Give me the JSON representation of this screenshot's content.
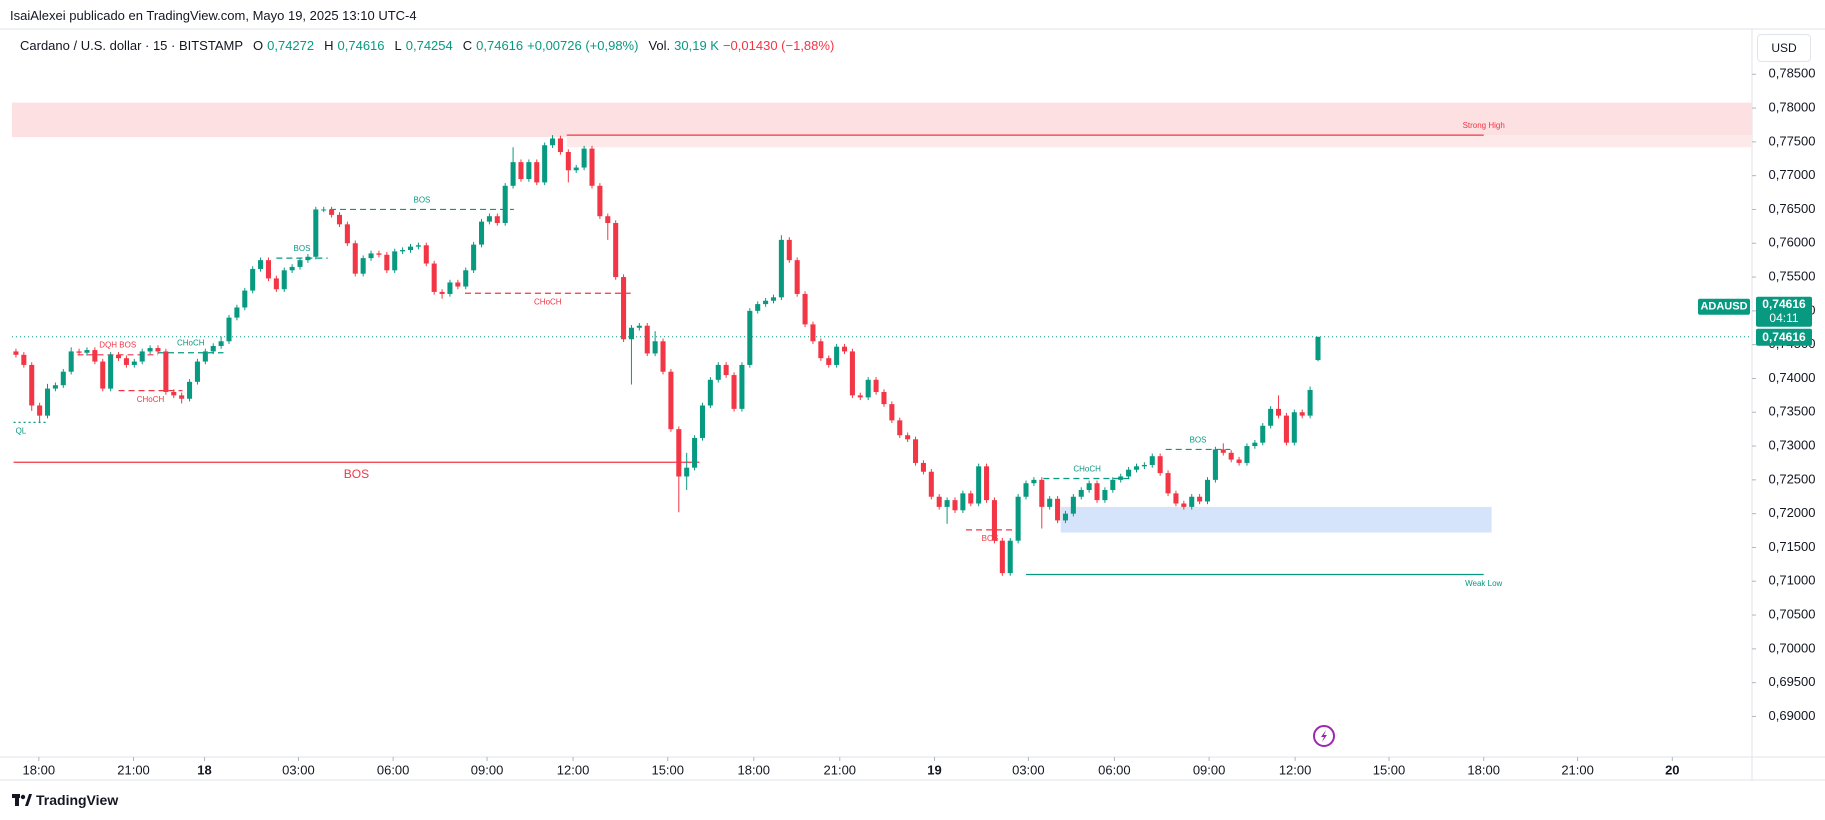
{
  "header": {
    "publisher": "IsaiAlexei publicado en TradingView.com, Mayo 19, 2025 13:10 UTC-4"
  },
  "footer": {
    "brand": "TradingView"
  },
  "chart_data": {
    "type": "candlestick",
    "title": "Cardano / U.S. dollar · 15 · BITSTAMP",
    "ohlc_legend": [
      {
        "key": "O",
        "text": "0,74272"
      },
      {
        "key": "H",
        "text": "0,74616"
      },
      {
        "key": "L",
        "text": "0,74254"
      },
      {
        "key": "C",
        "text": "0,74616"
      }
    ],
    "change": "+0,00726 (+0,98%)",
    "volume_label": "Vol.",
    "volume": "30,19 K",
    "volume_change": "−0,01430 (−1,88%)",
    "currency": "USD",
    "symbol_badge": {
      "symbol": "ADAUSD",
      "price": "0,74616",
      "countdown": "04:11"
    },
    "last_price": {
      "value": 0.74616,
      "label": "0,74616"
    },
    "up_color": "#089981",
    "down_color": "#f23645",
    "grid": false,
    "open": [
      0.744,
      0.7435,
      0.742,
      0.736,
      0.7345,
      0.7385,
      0.739,
      0.741,
      0.744,
      0.7438,
      0.7442,
      0.7425,
      0.7385,
      0.7435,
      0.743,
      0.742,
      0.7425,
      0.744,
      0.7445,
      0.744,
      0.738,
      0.7375,
      0.737,
      0.7395,
      0.7425,
      0.744,
      0.7448,
      0.7455,
      0.749,
      0.7505,
      0.753,
      0.7562,
      0.7575,
      0.7548,
      0.7532,
      0.756,
      0.7565,
      0.7575,
      0.758,
      0.765,
      0.765,
      0.7642,
      0.7628,
      0.76,
      0.7555,
      0.7578,
      0.7585,
      0.7583,
      0.756,
      0.7588,
      0.759,
      0.7595,
      0.7597,
      0.757,
      0.7528,
      0.7525,
      0.7542,
      0.7536,
      0.756,
      0.7598,
      0.7632,
      0.764,
      0.763,
      0.7685,
      0.772,
      0.7695,
      0.772,
      0.769,
      0.7745,
      0.7755,
      0.7735,
      0.7708,
      0.7712,
      0.774,
      0.7685,
      0.764,
      0.763,
      0.755,
      0.7458,
      0.7475,
      0.7478,
      0.7437,
      0.7455,
      0.741,
      0.7325,
      0.7255,
      0.7268,
      0.7312,
      0.736,
      0.7398,
      0.742,
      0.7405,
      0.7355,
      0.742,
      0.75,
      0.751,
      0.7515,
      0.752,
      0.7605,
      0.7575,
      0.7525,
      0.748,
      0.7455,
      0.743,
      0.742,
      0.7447,
      0.744,
      0.7375,
      0.7372,
      0.7398,
      0.738,
      0.7362,
      0.7338,
      0.7316,
      0.731,
      0.7275,
      0.7262,
      0.7225,
      0.721,
      0.722,
      0.7205,
      0.723,
      0.7215,
      0.727,
      0.722,
      0.716,
      0.7112,
      0.716,
      0.7225,
      0.7245,
      0.725,
      0.721,
      0.7222,
      0.719,
      0.72,
      0.7225,
      0.7235,
      0.7245,
      0.722,
      0.7235,
      0.725,
      0.7255,
      0.7265,
      0.727,
      0.7272,
      0.7285,
      0.726,
      0.723,
      0.7215,
      0.721,
      0.7225,
      0.7218,
      0.725,
      0.7295,
      0.729,
      0.728,
      0.7275,
      0.73,
      0.7305,
      0.733,
      0.7355,
      0.7345,
      0.7305,
      0.735,
      0.7345,
      0.74272
    ],
    "high": [
      0.7444,
      0.7439,
      0.7424,
      0.7364,
      0.7392,
      0.7394,
      0.7414,
      0.7446,
      0.7444,
      0.7446,
      0.7446,
      0.7429,
      0.7439,
      0.7439,
      0.7434,
      0.7429,
      0.7444,
      0.7449,
      0.7449,
      0.7444,
      0.7384,
      0.7379,
      0.7399,
      0.7429,
      0.7444,
      0.7452,
      0.7462,
      0.7494,
      0.7509,
      0.7534,
      0.7566,
      0.7579,
      0.7579,
      0.7552,
      0.7564,
      0.7569,
      0.7579,
      0.7584,
      0.7654,
      0.7654,
      0.7654,
      0.7646,
      0.7632,
      0.7604,
      0.7582,
      0.7589,
      0.7589,
      0.7587,
      0.7592,
      0.7594,
      0.7599,
      0.7601,
      0.7601,
      0.7574,
      0.7532,
      0.7546,
      0.7546,
      0.7564,
      0.7602,
      0.7636,
      0.7644,
      0.7644,
      0.7689,
      0.7742,
      0.7724,
      0.7724,
      0.7724,
      0.7749,
      0.776,
      0.7759,
      0.7739,
      0.7716,
      0.7744,
      0.7744,
      0.7689,
      0.7644,
      0.7634,
      0.7554,
      0.7479,
      0.7482,
      0.7482,
      0.747,
      0.7459,
      0.7414,
      0.7329,
      0.729,
      0.7316,
      0.7364,
      0.7402,
      0.7424,
      0.7424,
      0.7409,
      0.7424,
      0.7504,
      0.7514,
      0.7519,
      0.7524,
      0.7612,
      0.7609,
      0.7579,
      0.7529,
      0.7484,
      0.7459,
      0.7434,
      0.7451,
      0.7451,
      0.7444,
      0.7379,
      0.7402,
      0.7402,
      0.7384,
      0.7366,
      0.7342,
      0.732,
      0.7314,
      0.7279,
      0.7266,
      0.7229,
      0.7224,
      0.7224,
      0.7234,
      0.7234,
      0.7274,
      0.7274,
      0.7224,
      0.7164,
      0.7164,
      0.7229,
      0.7249,
      0.7254,
      0.7254,
      0.7226,
      0.7226,
      0.7204,
      0.7229,
      0.7239,
      0.7249,
      0.7249,
      0.7239,
      0.7254,
      0.7259,
      0.7269,
      0.7274,
      0.7276,
      0.7289,
      0.7289,
      0.7264,
      0.7234,
      0.7219,
      0.7229,
      0.7229,
      0.7254,
      0.7299,
      0.7304,
      0.7294,
      0.7284,
      0.7304,
      0.7309,
      0.7334,
      0.7359,
      0.7375,
      0.7349,
      0.7354,
      0.7354,
      0.7388,
      0.74616
    ],
    "low": [
      0.7431,
      0.7416,
      0.7352,
      0.7335,
      0.7341,
      0.7381,
      0.7386,
      0.7406,
      0.7434,
      0.7434,
      0.7421,
      0.7381,
      0.7381,
      0.7426,
      0.7416,
      0.7416,
      0.7421,
      0.7436,
      0.7436,
      0.7376,
      0.7371,
      0.7363,
      0.7366,
      0.7391,
      0.7421,
      0.7436,
      0.7444,
      0.7451,
      0.7486,
      0.7501,
      0.7526,
      0.7558,
      0.7544,
      0.7528,
      0.7528,
      0.7556,
      0.7561,
      0.7571,
      0.7576,
      0.7646,
      0.7638,
      0.7624,
      0.7596,
      0.7551,
      0.7551,
      0.7574,
      0.7579,
      0.7556,
      0.7556,
      0.7584,
      0.7586,
      0.7591,
      0.7566,
      0.7524,
      0.7518,
      0.7521,
      0.7532,
      0.7532,
      0.7556,
      0.7594,
      0.7628,
      0.7626,
      0.7626,
      0.7681,
      0.7691,
      0.7691,
      0.7686,
      0.7686,
      0.7741,
      0.7731,
      0.769,
      0.7704,
      0.7708,
      0.7681,
      0.7636,
      0.7605,
      0.7546,
      0.7454,
      0.7391,
      0.7471,
      0.7433,
      0.7433,
      0.7406,
      0.7321,
      0.7202,
      0.7235,
      0.7264,
      0.7308,
      0.7356,
      0.7394,
      0.7401,
      0.7351,
      0.7351,
      0.7416,
      0.7496,
      0.7506,
      0.7511,
      0.7516,
      0.7571,
      0.7521,
      0.7476,
      0.7451,
      0.7426,
      0.7416,
      0.7416,
      0.7436,
      0.7371,
      0.7368,
      0.7368,
      0.7376,
      0.7358,
      0.7334,
      0.7312,
      0.7306,
      0.7271,
      0.7258,
      0.7221,
      0.7206,
      0.7185,
      0.7201,
      0.7201,
      0.7211,
      0.7211,
      0.7216,
      0.7156,
      0.7108,
      0.7108,
      0.7156,
      0.7221,
      0.7241,
      0.7178,
      0.7206,
      0.7186,
      0.7186,
      0.7196,
      0.7221,
      0.7231,
      0.7216,
      0.7216,
      0.7231,
      0.7246,
      0.7251,
      0.7261,
      0.7266,
      0.7268,
      0.7256,
      0.7226,
      0.7211,
      0.7206,
      0.7206,
      0.7214,
      0.7214,
      0.7246,
      0.7286,
      0.7276,
      0.7271,
      0.7271,
      0.7296,
      0.7301,
      0.7326,
      0.7341,
      0.7301,
      0.7301,
      0.7341,
      0.7341,
      0.74254
    ],
    "close": [
      0.7435,
      0.742,
      0.736,
      0.7345,
      0.7385,
      0.739,
      0.741,
      0.744,
      0.7438,
      0.7442,
      0.7425,
      0.7385,
      0.7435,
      0.743,
      0.742,
      0.7425,
      0.744,
      0.7445,
      0.744,
      0.738,
      0.7375,
      0.737,
      0.7395,
      0.7425,
      0.744,
      0.7448,
      0.7455,
      0.749,
      0.7505,
      0.753,
      0.7562,
      0.7575,
      0.7548,
      0.7532,
      0.756,
      0.7565,
      0.7575,
      0.758,
      0.765,
      0.765,
      0.7642,
      0.7628,
      0.76,
      0.7555,
      0.7578,
      0.7585,
      0.7583,
      0.756,
      0.7588,
      0.759,
      0.7595,
      0.7597,
      0.757,
      0.7528,
      0.7525,
      0.7542,
      0.7536,
      0.756,
      0.7598,
      0.7632,
      0.764,
      0.763,
      0.7685,
      0.772,
      0.7695,
      0.772,
      0.769,
      0.7745,
      0.7755,
      0.7735,
      0.7708,
      0.7712,
      0.774,
      0.7685,
      0.764,
      0.763,
      0.755,
      0.7458,
      0.7475,
      0.7478,
      0.7437,
      0.7455,
      0.741,
      0.7325,
      0.7255,
      0.7268,
      0.7312,
      0.736,
      0.7398,
      0.742,
      0.7405,
      0.7355,
      0.742,
      0.75,
      0.751,
      0.7515,
      0.752,
      0.7605,
      0.7575,
      0.7525,
      0.748,
      0.7455,
      0.743,
      0.742,
      0.7447,
      0.744,
      0.7375,
      0.7372,
      0.7398,
      0.738,
      0.7362,
      0.7338,
      0.7316,
      0.731,
      0.7275,
      0.7262,
      0.7225,
      0.721,
      0.722,
      0.7205,
      0.723,
      0.7215,
      0.727,
      0.722,
      0.716,
      0.7112,
      0.716,
      0.7225,
      0.7245,
      0.725,
      0.721,
      0.7222,
      0.719,
      0.72,
      0.7225,
      0.7235,
      0.7245,
      0.722,
      0.7235,
      0.725,
      0.7255,
      0.7265,
      0.727,
      0.7272,
      0.7285,
      0.726,
      0.723,
      0.7215,
      0.721,
      0.7225,
      0.7218,
      0.725,
      0.7295,
      0.729,
      0.728,
      0.7275,
      0.73,
      0.7305,
      0.733,
      0.7355,
      0.7345,
      0.7305,
      0.735,
      0.7345,
      0.7383,
      0.74616
    ],
    "xlim": [
      -0.5,
      220
    ],
    "xticks": [
      {
        "value": 2.9,
        "label": "18:00"
      },
      {
        "value": 14.9,
        "label": "21:00"
      },
      {
        "value": 23.9,
        "label": "18"
      },
      {
        "value": 35.8,
        "label": "03:00"
      },
      {
        "value": 47.8,
        "label": "06:00"
      },
      {
        "value": 59.7,
        "label": "09:00"
      },
      {
        "value": 70.6,
        "label": "12:00"
      },
      {
        "value": 82.6,
        "label": "15:00"
      },
      {
        "value": 93.5,
        "label": "18:00"
      },
      {
        "value": 104.4,
        "label": "21:00"
      },
      {
        "value": 116.4,
        "label": "19"
      },
      {
        "value": 128.3,
        "label": "03:00"
      },
      {
        "value": 139.2,
        "label": "06:00"
      },
      {
        "value": 151.2,
        "label": "09:00"
      },
      {
        "value": 162.1,
        "label": "12:00"
      },
      {
        "value": 174,
        "label": "15:00"
      },
      {
        "value": 186,
        "label": "18:00"
      },
      {
        "value": 197.9,
        "label": "21:00"
      },
      {
        "value": 209.9,
        "label": "20"
      }
    ],
    "ylim": [
      0.684,
      0.7914
    ],
    "yticks": [
      {
        "value": 0.69,
        "label": "0,69000"
      },
      {
        "value": 0.695,
        "label": "0,69500"
      },
      {
        "value": 0.7,
        "label": "0,70000"
      },
      {
        "value": 0.705,
        "label": "0,70500"
      },
      {
        "value": 0.71,
        "label": "0,71000"
      },
      {
        "value": 0.715,
        "label": "0,71500"
      },
      {
        "value": 0.72,
        "label": "0,72000"
      },
      {
        "value": 0.725,
        "label": "0,72500"
      },
      {
        "value": 0.73,
        "label": "0,73000"
      },
      {
        "value": 0.735,
        "label": "0,73500"
      },
      {
        "value": 0.74,
        "label": "0,74000"
      },
      {
        "value": 0.745,
        "label": "0,74500"
      },
      {
        "value": 0.75,
        "label": "0,75000"
      },
      {
        "value": 0.755,
        "label": "0,75500"
      },
      {
        "value": 0.76,
        "label": "0,76000"
      },
      {
        "value": 0.765,
        "label": "0,76500"
      },
      {
        "value": 0.77,
        "label": "0,77000"
      },
      {
        "value": 0.775,
        "label": "0,77500"
      },
      {
        "value": 0.78,
        "label": "0,78000"
      },
      {
        "value": 0.785,
        "label": "0,78500"
      }
    ],
    "zones": [
      {
        "low": 0.7757,
        "high": 0.7808,
        "color": "#fde0e2"
      },
      {
        "low": 0.7742,
        "high": 0.776,
        "from": 69.8,
        "color": "#fde9ea"
      },
      {
        "low": 0.7172,
        "high": 0.721,
        "from": 132.4,
        "to": 187,
        "color": "#d6e4fb"
      }
    ],
    "levels": [
      {
        "label": "Strong High",
        "price": 0.776,
        "from": 69.8,
        "to": 186,
        "color": "#f23645",
        "style": "solid",
        "label_pos": "above",
        "label_at": "end"
      },
      {
        "label": "Weak Low",
        "price": 0.711,
        "from": 128,
        "to": 186,
        "color": "#089981",
        "style": "solid",
        "label_pos": "below",
        "label_at": "end"
      },
      {
        "label": "BOS",
        "price": 0.765,
        "from": 39.8,
        "to": 63.1,
        "color": "#089981",
        "style": "dashed",
        "label_pos": "above",
        "label_at": "mid"
      },
      {
        "label": "BOS",
        "price": 0.7578,
        "from": 33,
        "to": 39.5,
        "color": "#089981",
        "style": "dashed",
        "label_pos": "above",
        "label_at": "mid"
      },
      {
        "label": "CHoCH",
        "price": 0.7526,
        "from": 56.9,
        "to": 77.9,
        "color": "#f23645",
        "style": "dashed",
        "label_pos": "below",
        "label_at": "mid"
      },
      {
        "label": "BOS",
        "price": 0.7276,
        "from": -0.3,
        "to": 86.6,
        "color": "#f23645",
        "style": "solid",
        "label_pos": "below",
        "label_at": "mid",
        "emphasis": true
      },
      {
        "label": "CHoCH",
        "price": 0.7382,
        "from": 13,
        "to": 21.1,
        "color": "#f23645",
        "style": "dashed",
        "label_pos": "below",
        "label_at": "mid"
      },
      {
        "label": "DQH BOS",
        "price": 0.7435,
        "from": 7.8,
        "to": 18,
        "color": "#f23645",
        "style": "dashed",
        "label_pos": "above",
        "label_at": "mid"
      },
      {
        "label": "CHoCH",
        "price": 0.7438,
        "from": 18,
        "to": 26.3,
        "color": "#089981",
        "style": "dashed",
        "label_pos": "above",
        "label_at": "mid"
      },
      {
        "label": "QL",
        "price": 0.7335,
        "from": -0.3,
        "to": 4.1,
        "color": "#089981",
        "style": "dotted",
        "label_pos": "below",
        "label_at": "start"
      },
      {
        "label": "CHoCH",
        "price": 0.7252,
        "from": 130.2,
        "to": 141.3,
        "color": "#089981",
        "style": "dashed",
        "label_pos": "above",
        "label_at": "mid"
      },
      {
        "label": "BOS",
        "price": 0.7295,
        "from": 145.7,
        "to": 153.9,
        "color": "#089981",
        "style": "dashed",
        "label_pos": "above",
        "label_at": "mid"
      },
      {
        "label": "BOS",
        "price": 0.7176,
        "from": 120.4,
        "to": 126.5,
        "color": "#f23645",
        "style": "dashed",
        "label_pos": "below",
        "label_at": "mid"
      }
    ]
  }
}
